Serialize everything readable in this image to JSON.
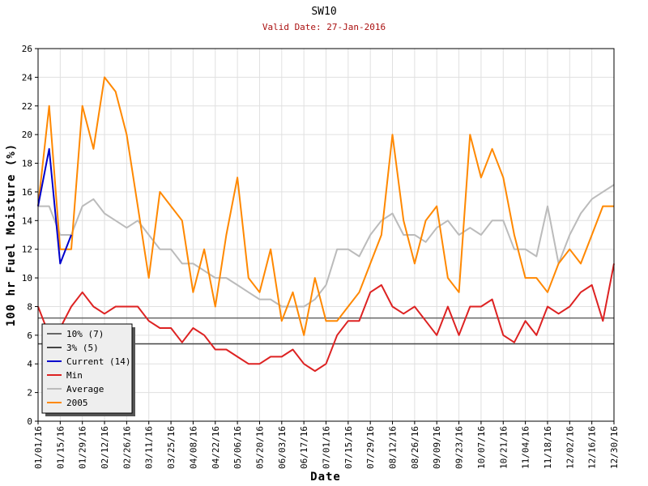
{
  "chart_data": {
    "type": "line",
    "title": "SW10",
    "subtitle": "Valid Date: 27-Jan-2016",
    "x_label": "Date",
    "y_label": "100 hr Fuel Moisture (%)",
    "x": [
      "01/01/16",
      "01/08/16",
      "01/15/16",
      "01/22/16",
      "01/29/16",
      "02/05/16",
      "02/12/16",
      "02/19/16",
      "02/26/16",
      "03/04/16",
      "03/11/16",
      "03/18/16",
      "03/25/16",
      "04/01/16",
      "04/08/16",
      "04/15/16",
      "04/22/16",
      "04/29/16",
      "05/06/16",
      "05/13/16",
      "05/20/16",
      "05/27/16",
      "06/03/16",
      "06/10/16",
      "06/17/16",
      "06/24/16",
      "07/01/16",
      "07/08/16",
      "07/15/16",
      "07/22/16",
      "07/29/16",
      "08/05/16",
      "08/12/16",
      "08/19/16",
      "08/26/16",
      "09/02/16",
      "09/09/16",
      "09/16/16",
      "09/23/16",
      "09/30/16",
      "10/07/16",
      "10/14/16",
      "10/21/16",
      "10/28/16",
      "11/04/16",
      "11/11/16",
      "11/18/16",
      "11/25/16",
      "12/02/16",
      "12/09/16",
      "12/16/16",
      "12/23/16",
      "12/30/16"
    ],
    "reference_lines": [
      {
        "name": "10% (7)",
        "color": "#666666",
        "value": 7.2
      },
      {
        "name": "3% (5)",
        "color": "#444444",
        "value": 5.4
      }
    ],
    "series": [
      {
        "name": "Current (14)",
        "color": "#0000cc",
        "values": [
          15,
          19,
          11,
          13,
          null,
          null,
          null,
          null,
          null,
          null,
          null,
          null,
          null,
          null,
          null,
          null,
          null,
          null,
          null,
          null,
          null,
          null,
          null,
          null,
          null,
          null,
          null,
          null,
          null,
          null,
          null,
          null,
          null,
          null,
          null,
          null,
          null,
          null,
          null,
          null,
          null,
          null,
          null,
          null,
          null,
          null,
          null,
          null,
          null,
          null,
          null,
          null,
          null
        ]
      },
      {
        "name": "Min",
        "color": "#dd2222",
        "values": [
          8,
          6,
          6.5,
          8,
          9,
          8,
          7.5,
          8,
          8,
          8,
          7,
          6.5,
          6.5,
          5.5,
          6.5,
          6,
          5,
          5,
          4.5,
          4,
          4,
          4.5,
          4.5,
          5,
          4,
          3.5,
          4,
          6,
          7,
          7,
          9,
          9.5,
          8,
          7.5,
          8,
          7,
          6,
          8,
          6,
          8,
          8,
          8.5,
          6,
          5.5,
          7,
          6,
          8,
          7.5,
          8,
          9,
          9.5,
          7,
          11
        ]
      },
      {
        "name": "Average",
        "color": "#bbbbbb",
        "values": [
          15,
          15,
          13,
          13,
          15,
          15.5,
          14.5,
          14,
          13.5,
          14,
          13,
          12,
          12,
          11,
          11,
          10.5,
          10,
          10,
          9.5,
          9,
          8.5,
          8.5,
          8,
          8,
          8,
          8.5,
          9.5,
          12,
          12,
          11.5,
          13,
          14,
          14.5,
          13,
          13,
          12.5,
          13.5,
          14,
          13,
          13.5,
          13,
          14,
          14,
          12,
          12,
          11.5,
          15,
          11,
          13,
          14.5,
          15.5,
          16,
          16.5
        ]
      },
      {
        "name": "2005",
        "color": "#ff8800",
        "values": [
          15,
          22,
          12,
          12,
          22,
          19,
          24,
          23,
          20,
          15,
          10,
          16,
          15,
          14,
          9,
          12,
          8,
          13,
          17,
          10,
          9,
          12,
          7,
          9,
          6,
          10,
          7,
          7,
          8,
          9,
          11,
          13,
          20,
          14,
          11,
          14,
          15,
          10,
          9,
          20,
          17,
          19,
          17,
          13,
          10,
          10,
          9,
          11,
          12,
          11,
          13,
          15,
          15
        ]
      }
    ],
    "xlim": [
      "01/01/16",
      "12/30/16"
    ],
    "xticks": [
      "01/01/16",
      "01/15/16",
      "01/29/16",
      "02/12/16",
      "02/26/16",
      "03/11/16",
      "03/25/16",
      "04/08/16",
      "04/22/16",
      "05/06/16",
      "05/20/16",
      "06/03/16",
      "06/17/16",
      "07/01/16",
      "07/15/16",
      "07/29/16",
      "08/12/16",
      "08/26/16",
      "09/09/16",
      "09/23/16",
      "10/07/16",
      "10/21/16",
      "11/04/16",
      "11/18/16",
      "12/02/16",
      "12/16/16",
      "12/30/16"
    ],
    "ylim": [
      0,
      26
    ],
    "yticks": [
      0,
      2,
      4,
      6,
      8,
      10,
      12,
      14,
      16,
      18,
      20,
      22,
      24,
      26
    ],
    "grid": true,
    "legend_position": "lower left"
  }
}
